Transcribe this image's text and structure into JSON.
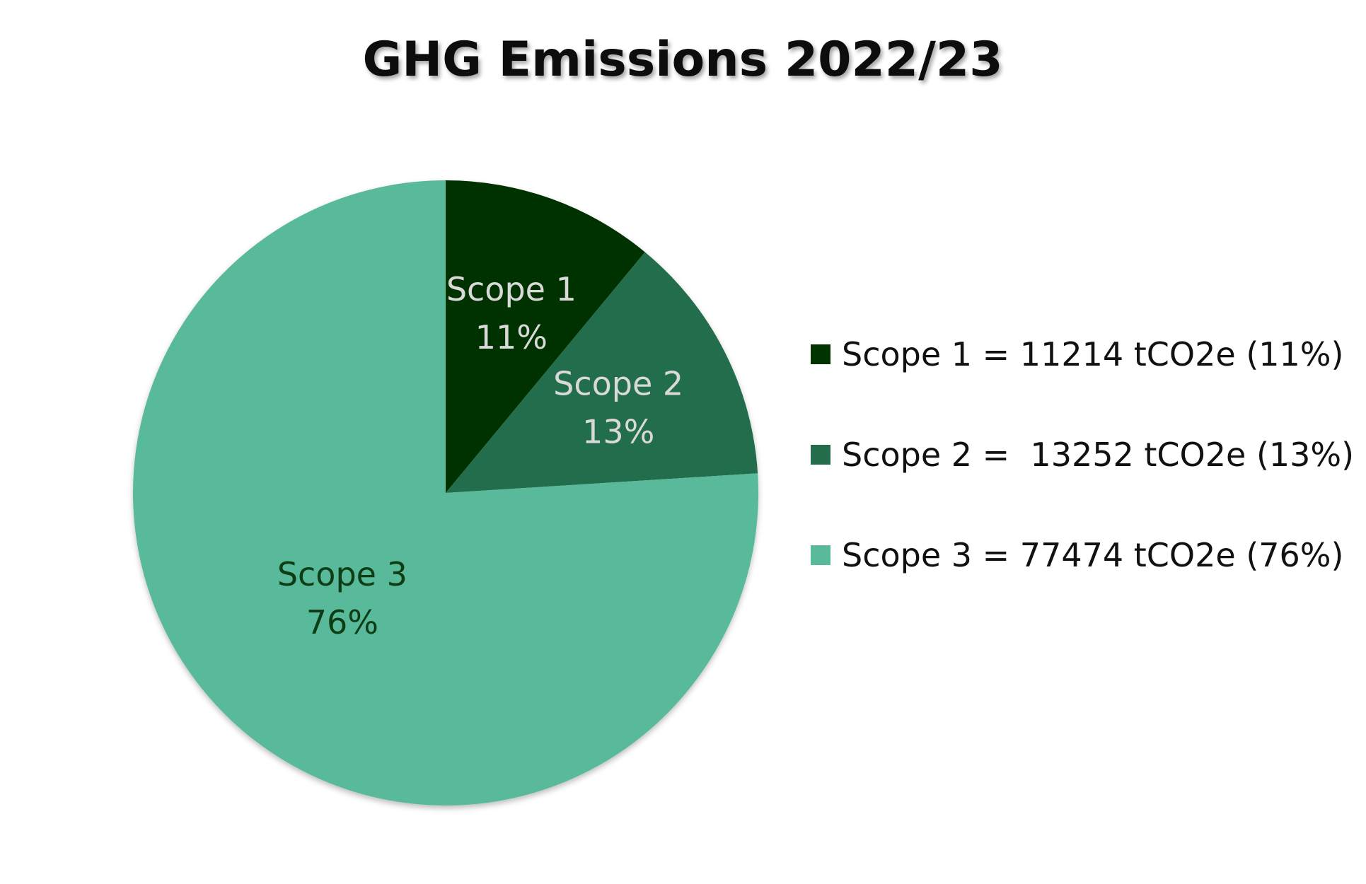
{
  "chart_data": {
    "type": "pie",
    "title": "GHG Emissions 2022/23",
    "start_angle_deg": 0,
    "direction": "clockwise",
    "legend_position": "right",
    "slices": [
      {
        "name": "Scope 1",
        "value": 11214,
        "percent": 11,
        "label_line1": "Scope 1",
        "label_line2": "11%",
        "legend": "Scope 1 = 11214 tCO2e (11%)",
        "color": "#013300",
        "label_color": "#d9d9d9"
      },
      {
        "name": "Scope 2",
        "value": 13252,
        "percent": 13,
        "label_line1": "Scope 2",
        "label_line2": "13%",
        "legend": "Scope 2 =  13252 tCO2e (13%)",
        "color": "#246d4b",
        "label_color": "#d9d9d9"
      },
      {
        "name": "Scope 3",
        "value": 77474,
        "percent": 76,
        "label_line1": "Scope 3",
        "label_line2": "76%",
        "legend": "Scope 3 = 77474 tCO2e (76%)",
        "color": "#58b99b",
        "label_color": "#0c3d14"
      }
    ]
  }
}
